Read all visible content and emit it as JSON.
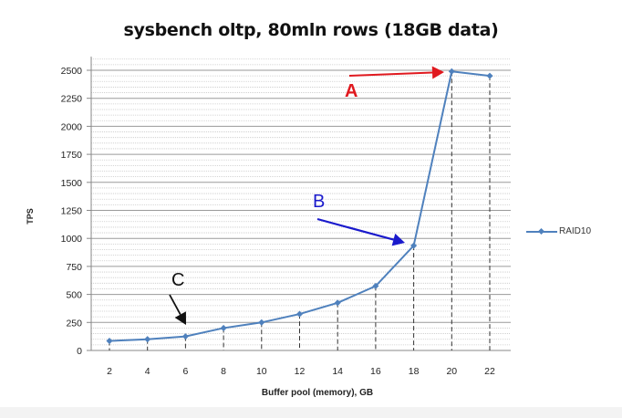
{
  "chart_data": {
    "type": "line",
    "title": "sysbench oltp, 80mln rows (18GB data)",
    "xlabel": "Buffer pool (memory), GB",
    "ylabel": "TPS",
    "x": [
      2,
      4,
      6,
      8,
      10,
      12,
      14,
      16,
      18,
      20,
      22
    ],
    "series": [
      {
        "name": "RAID10",
        "color": "#4f81bd",
        "values": [
          85,
          100,
          125,
          200,
          250,
          325,
          425,
          575,
          935,
          2490,
          2450
        ]
      }
    ],
    "ylim": [
      0,
      2500
    ],
    "yticks": [
      0,
      250,
      500,
      750,
      1000,
      1250,
      1500,
      1750,
      2000,
      2250,
      2500
    ],
    "xticks": [
      2,
      4,
      6,
      8,
      10,
      12,
      14,
      16,
      18,
      20,
      22
    ],
    "grid": true,
    "legend_position": "right",
    "annotations": [
      {
        "label": "A",
        "color": "#e0191f",
        "points_to_x": 20
      },
      {
        "label": "B",
        "color": "#1a1acc",
        "points_to_x": 18
      },
      {
        "label": "C",
        "color": "#111111",
        "points_to_x": 6
      }
    ]
  },
  "legend": {
    "label": "RAID10"
  }
}
